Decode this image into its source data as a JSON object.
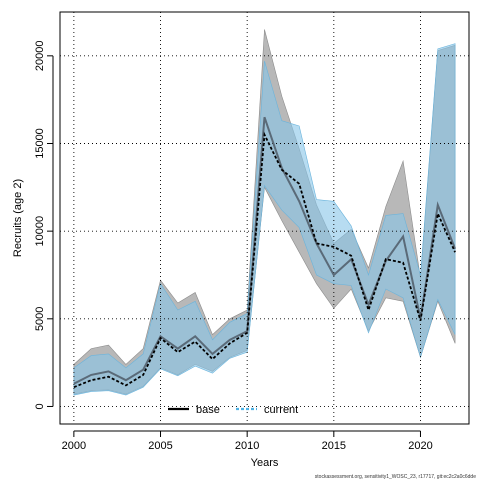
{
  "chart_data": {
    "type": "line",
    "xlabel": "Years",
    "ylabel": "Recruits (age 2)",
    "xlim": [
      1999.2,
      2022.8
    ],
    "ylim": [
      -1000,
      22500
    ],
    "x_ticks": [
      2000,
      2005,
      2010,
      2015,
      2020
    ],
    "y_ticks": [
      0,
      5000,
      10000,
      15000,
      20000
    ],
    "x_tick_labels": [
      "2000",
      "2005",
      "2010",
      "2015",
      "2020"
    ],
    "y_tick_labels": [
      "0",
      "5000",
      "10000",
      "15000",
      "20000"
    ],
    "grid": true,
    "legend_position": "bottom-center",
    "x": [
      2000,
      2001,
      2002,
      2003,
      2004,
      2005,
      2006,
      2007,
      2008,
      2009,
      2010,
      2011,
      2012,
      2013,
      2014,
      2015,
      2016,
      2017,
      2018,
      2019,
      2020,
      2021,
      2022
    ],
    "series": [
      {
        "name": "base",
        "color": "#000000",
        "line_style": "solid",
        "values": [
          1300,
          1800,
          2000,
          1500,
          2100,
          4000,
          3300,
          4000,
          3000,
          3800,
          4300,
          16500,
          13600,
          11700,
          9300,
          7500,
          8400,
          5800,
          8300,
          9700,
          5000,
          11500,
          9000
        ],
        "lower": [
          700,
          900,
          950,
          700,
          1150,
          2200,
          1800,
          2400,
          2000,
          2800,
          3200,
          12500,
          10600,
          8800,
          7000,
          5600,
          6700,
          4300,
          6200,
          6000,
          2800,
          6000,
          3600
        ],
        "upper": [
          2400,
          3300,
          3500,
          2400,
          3300,
          7200,
          5900,
          6500,
          4100,
          5000,
          5500,
          21500,
          17700,
          14700,
          11500,
          9300,
          10100,
          7900,
          11400,
          14000,
          7300,
          20300,
          20600
        ]
      },
      {
        "name": "current",
        "color": "#4fb3e5",
        "line_style": "dashed",
        "values": [
          1100,
          1500,
          1700,
          1200,
          1800,
          3900,
          3100,
          3700,
          2700,
          3600,
          4200,
          15500,
          13500,
          12700,
          9300,
          9100,
          8600,
          5500,
          8400,
          8200,
          4900,
          11000,
          8800
        ],
        "lower": [
          650,
          850,
          900,
          650,
          1100,
          2150,
          1750,
          2300,
          1900,
          2750,
          3100,
          12600,
          11200,
          10200,
          7500,
          7000,
          6900,
          4200,
          6700,
          6200,
          2800,
          6100,
          4100
        ],
        "upper": [
          2200,
          2900,
          3000,
          2200,
          3000,
          7000,
          5500,
          6000,
          3800,
          4800,
          5300,
          19700,
          16300,
          16000,
          11800,
          11700,
          10300,
          7500,
          10900,
          11000,
          7500,
          20400,
          20700
        ]
      }
    ]
  },
  "footer": "stockassessment.org, sensitivity1_WOSC_23, r17717, git:ec2c2a0c6dde"
}
